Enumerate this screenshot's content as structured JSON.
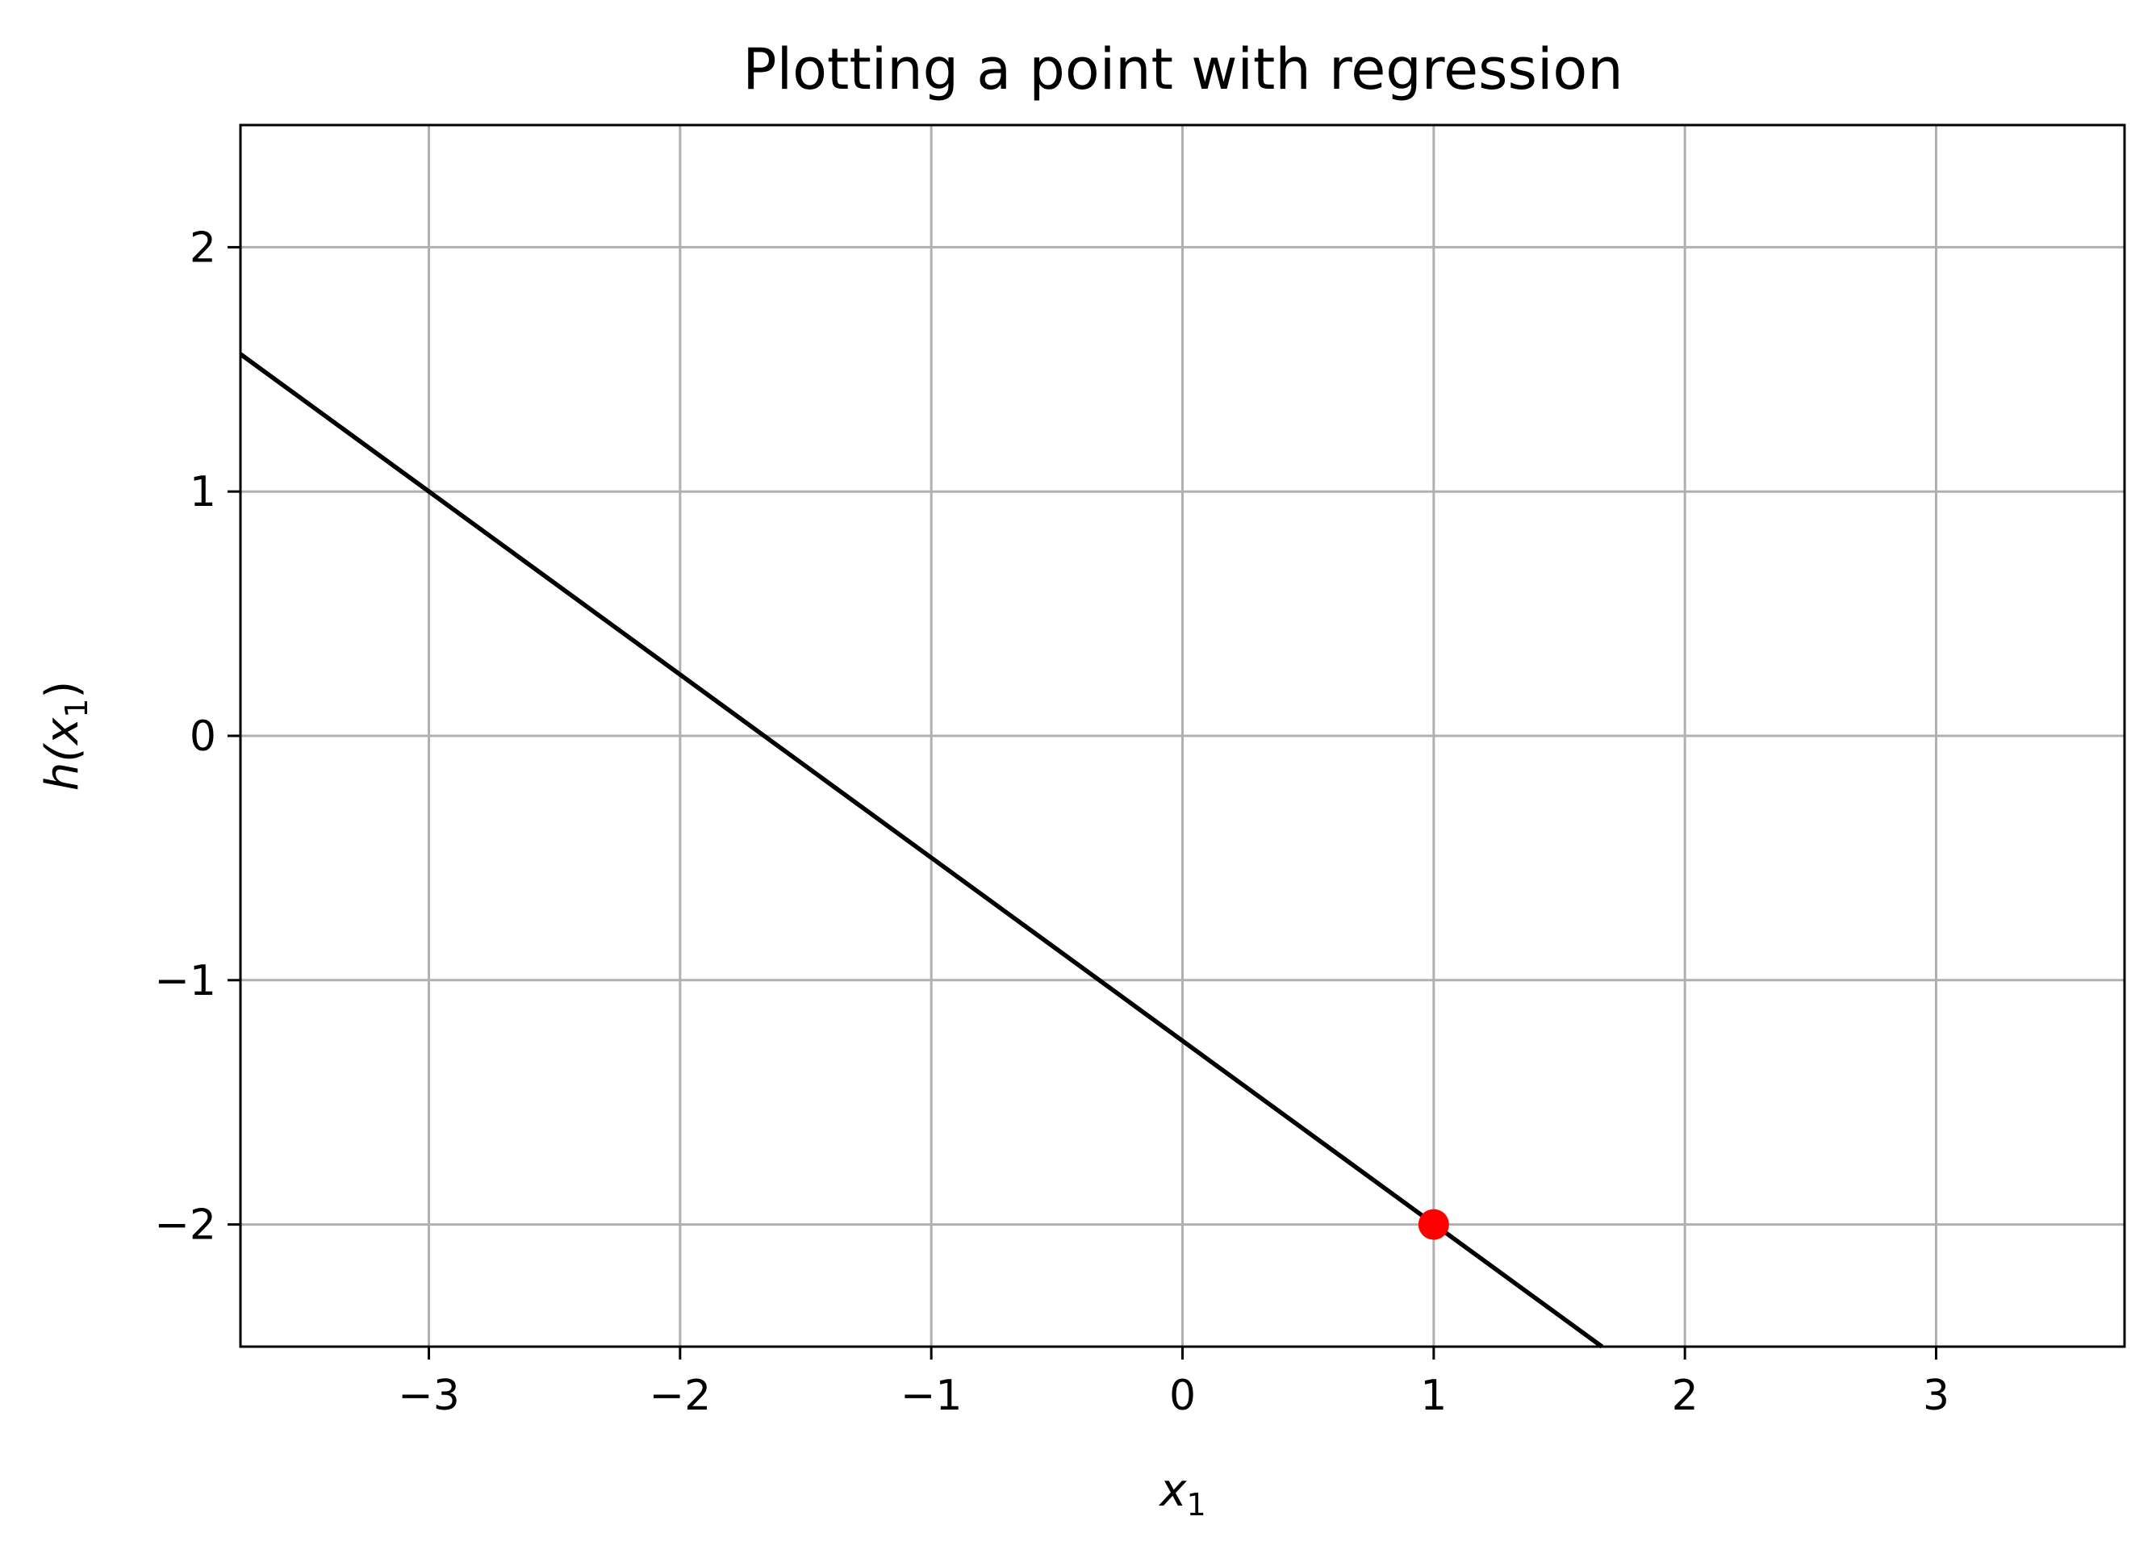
{
  "chart_data": {
    "type": "line",
    "title": "Plotting a point with regression",
    "xlabel": "x1",
    "ylabel": "h(x1)",
    "xlabel_parts": {
      "base": "x",
      "sub": "1"
    },
    "ylabel_parts": {
      "prefix": "h(",
      "base": "x",
      "sub": "1",
      "suffix": ")"
    },
    "xlim": [
      -3.75,
      3.75
    ],
    "ylim": [
      -2.5,
      2.5
    ],
    "xticks": [
      -3,
      -2,
      -1,
      0,
      1,
      2,
      3
    ],
    "yticks": [
      -2,
      -1,
      0,
      1,
      2
    ],
    "xtick_labels": [
      "−3",
      "−2",
      "−1",
      "0",
      "1",
      "2",
      "3"
    ],
    "ytick_labels": [
      "−2",
      "−1",
      "0",
      "1",
      "2"
    ],
    "grid": true,
    "series": [
      {
        "kind": "line",
        "x": [
          -3.75,
          1.67
        ],
        "y": [
          1.5625,
          -2.5
        ],
        "color": "#000000"
      },
      {
        "kind": "scatter",
        "x": [
          1
        ],
        "y": [
          -2
        ],
        "color": "#ff0000"
      }
    ]
  },
  "colors": {
    "background": "#ffffff",
    "grid": "#b0b0b0",
    "axes": "#000000",
    "line": "#000000",
    "point": "#ff0000"
  }
}
